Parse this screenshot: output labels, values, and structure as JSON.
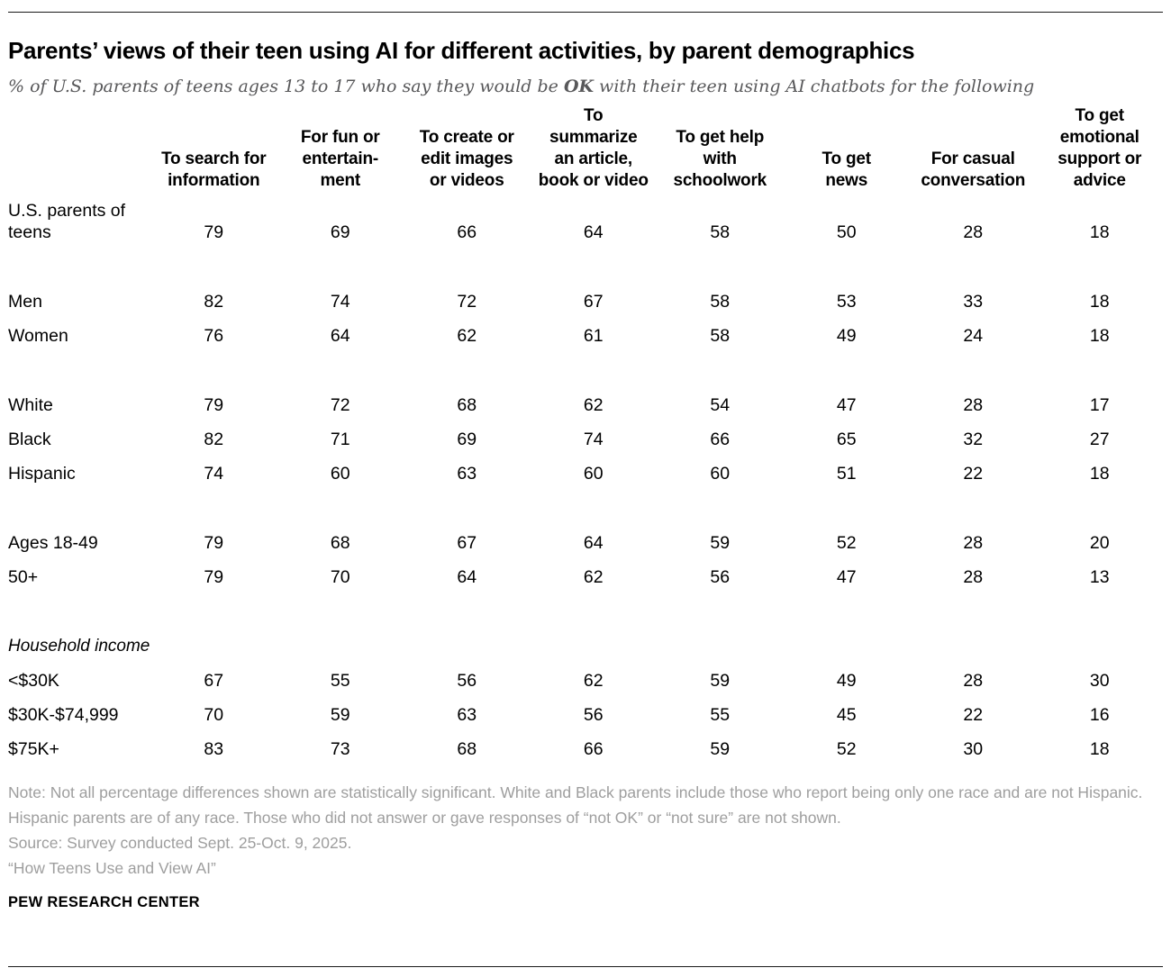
{
  "title": "Parents’ views of their teen using AI for different activities, by parent demographics",
  "subtitle": {
    "prefix": "% of U.S. parents of teens ages 13 to 17 who say they would be ",
    "bold": "OK",
    "suffix": " with their teen using AI chatbots for the following"
  },
  "chart_data": {
    "type": "table",
    "columns": [
      "To search for\ninformation",
      "For fun or\nentertain-\nment",
      "To create or\nedit images\nor videos",
      "To\nsummarize\nan article,\nbook or video",
      "To get help\nwith\nschoolwork",
      "To get\nnews",
      "For casual\nconversation",
      "To get\nemotional\nsupport or\nadvice"
    ],
    "groups": [
      {
        "rows": [
          {
            "label": "U.S. parents of\nteens",
            "values": [
              79,
              69,
              66,
              64,
              58,
              50,
              28,
              18
            ]
          }
        ]
      },
      {
        "rows": [
          {
            "label": "Men",
            "values": [
              82,
              74,
              72,
              67,
              58,
              53,
              33,
              18
            ]
          },
          {
            "label": "Women",
            "values": [
              76,
              64,
              62,
              61,
              58,
              49,
              24,
              18
            ]
          }
        ]
      },
      {
        "rows": [
          {
            "label": "White",
            "values": [
              79,
              72,
              68,
              62,
              54,
              47,
              28,
              17
            ]
          },
          {
            "label": "Black",
            "values": [
              82,
              71,
              69,
              74,
              66,
              65,
              32,
              27
            ]
          },
          {
            "label": "Hispanic",
            "values": [
              74,
              60,
              63,
              60,
              60,
              51,
              22,
              18
            ]
          }
        ]
      },
      {
        "rows": [
          {
            "label": "Ages 18-49",
            "values": [
              79,
              68,
              67,
              64,
              59,
              52,
              28,
              20
            ]
          },
          {
            "label": "50+",
            "values": [
              79,
              70,
              64,
              62,
              56,
              47,
              28,
              13
            ]
          }
        ]
      },
      {
        "section": "Household income",
        "rows": [
          {
            "label": "<$30K",
            "values": [
              67,
              55,
              56,
              62,
              59,
              49,
              28,
              30
            ]
          },
          {
            "label": "$30K-$74,999",
            "values": [
              70,
              59,
              63,
              56,
              55,
              45,
              22,
              16
            ]
          },
          {
            "label": "$75K+",
            "values": [
              83,
              73,
              68,
              66,
              59,
              52,
              30,
              18
            ]
          }
        ]
      }
    ]
  },
  "note": "Note: Not all percentage differences shown are statistically significant. White and Black parents include those who report being only one race and are not Hispanic. Hispanic parents are of any race. Those who did not answer or gave responses of “not OK” or “not sure” are not shown.",
  "source": "Source: Survey conducted Sept. 25-Oct. 9, 2025.",
  "report_title": "“How Teens Use and View AI”",
  "brand": "PEW RESEARCH CENTER",
  "colors": {
    "title": "#000000",
    "subtitle_gray": "#58585a",
    "note_gray": "#9e9e9e",
    "rule": "#1a1a1a"
  }
}
